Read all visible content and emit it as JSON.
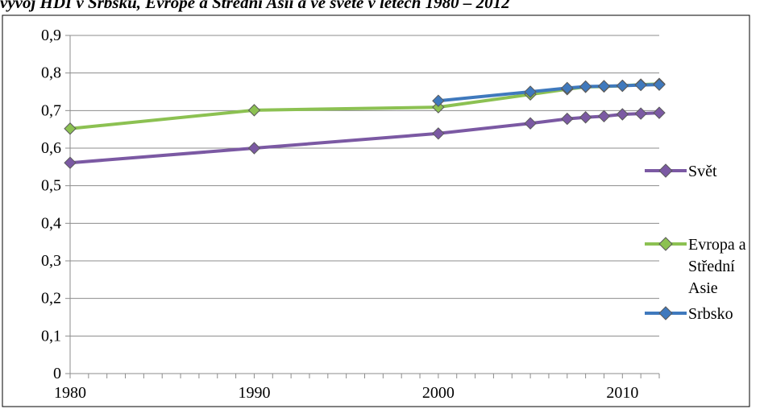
{
  "chart_data": {
    "type": "line",
    "title": "vývoj HDI v Srbsku, Evropě a Střední Asii a ve světě v letech 1980 – 2012",
    "xlabel": "",
    "ylabel": "",
    "xlim": [
      1980,
      2012
    ],
    "ylim": [
      0,
      0.9
    ],
    "x_ticks": [
      1980,
      1990,
      2000,
      2010
    ],
    "x_tick_labels": [
      "1980",
      "1990",
      "2000",
      "2010"
    ],
    "y_ticks": [
      0,
      0.1,
      0.2,
      0.3,
      0.4,
      0.5,
      0.6,
      0.7,
      0.8,
      0.9
    ],
    "y_tick_labels": [
      "0",
      "0,1",
      "0,2",
      "0,3",
      "0,4",
      "0,5",
      "0,6",
      "0,7",
      "0,8",
      "0,9"
    ],
    "grid": true,
    "legend_position": "right",
    "series": [
      {
        "name": "Svět",
        "color": "#7b59a3",
        "marker": "diamond",
        "x": [
          1980,
          1990,
          2000,
          2005,
          2007,
          2008,
          2009,
          2010,
          2011,
          2012
        ],
        "values": [
          0.561,
          0.6,
          0.639,
          0.666,
          0.678,
          0.682,
          0.685,
          0.69,
          0.692,
          0.694
        ]
      },
      {
        "name": "Evropa a Střední Asie",
        "color": "#8cc152",
        "marker": "diamond",
        "x": [
          1980,
          1990,
          2000,
          2005,
          2007,
          2008,
          2009,
          2010,
          2011,
          2012
        ],
        "values": [
          0.652,
          0.701,
          0.709,
          0.743,
          0.757,
          0.763,
          0.764,
          0.766,
          0.769,
          0.771
        ]
      },
      {
        "name": "Srbsko",
        "color": "#3f79bd",
        "marker": "diamond",
        "x": [
          2000,
          2005,
          2007,
          2008,
          2009,
          2010,
          2011,
          2012
        ],
        "values": [
          0.726,
          0.75,
          0.76,
          0.764,
          0.765,
          0.766,
          0.768,
          0.769
        ]
      }
    ],
    "legend": [
      {
        "name_lines": [
          "Svět"
        ]
      },
      {
        "name_lines": [
          "Evropa a",
          "Střední",
          "Asie"
        ]
      },
      {
        "name_lines": [
          "Srbsko"
        ]
      }
    ]
  }
}
